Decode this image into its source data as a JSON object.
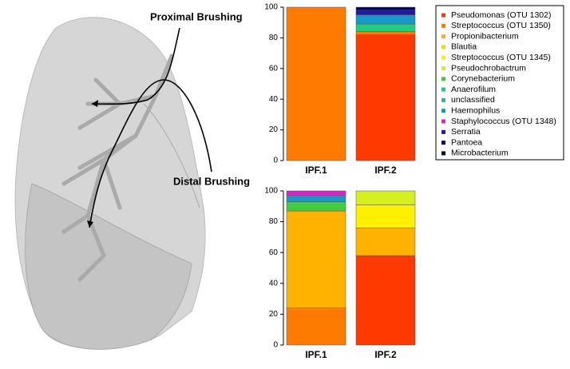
{
  "labels": {
    "proximal": "Proximal Brushing",
    "distal": "Distal Brushing"
  },
  "chart_data": [
    {
      "type": "stacked-bar",
      "categories": [
        "IPF.1",
        "IPF.2"
      ],
      "ylim": [
        0,
        100
      ],
      "yticks": [
        0,
        20,
        40,
        60,
        80,
        100
      ],
      "series": [
        {
          "name": "Pseudomonas (OTU 1302)",
          "color": "#ff3a00",
          "values": [
            0,
            82
          ]
        },
        {
          "name": "Streptococcus (OTU 1350)",
          "color": "#ff7a00",
          "values": [
            100,
            2
          ]
        },
        {
          "name": "Propionibacterium",
          "color": "#ffb300",
          "values": [
            0,
            0
          ]
        },
        {
          "name": "Blautia",
          "color": "#ffd400",
          "values": [
            0,
            0
          ]
        },
        {
          "name": "Streptococcus (OTU 1345)",
          "color": "#fff000",
          "values": [
            0,
            0
          ]
        },
        {
          "name": "Pseudochrobactrum",
          "color": "#d4f020",
          "values": [
            0,
            0
          ]
        },
        {
          "name": "Corynebacterium",
          "color": "#40cc40",
          "values": [
            0,
            0
          ]
        },
        {
          "name": "Anaerofilum",
          "color": "#20cc80",
          "values": [
            0,
            5
          ]
        },
        {
          "name": "unclassified",
          "color": "#20b8a8",
          "values": [
            0,
            0
          ]
        },
        {
          "name": "Haemophilus",
          "color": "#1898c8",
          "values": [
            0,
            6
          ]
        },
        {
          "name": "Staphylococcus (OTU 1348)",
          "color": "#e020d0",
          "values": [
            0,
            0
          ]
        },
        {
          "name": "Serratia",
          "color": "#1a1aa8",
          "values": [
            0,
            3
          ]
        },
        {
          "name": "Pantoea",
          "color": "#000070",
          "values": [
            0,
            2
          ]
        },
        {
          "name": "Microbacterium",
          "color": "#001030",
          "values": [
            0,
            0
          ]
        }
      ]
    },
    {
      "type": "stacked-bar",
      "categories": [
        "IPF.1",
        "IPF.2"
      ],
      "ylim": [
        0,
        100
      ],
      "yticks": [
        0,
        20,
        40,
        60,
        80,
        100
      ],
      "series": [
        {
          "values": [
            0,
            58
          ]
        },
        {
          "values": [
            24,
            0
          ]
        },
        {
          "values": [
            63,
            18
          ]
        },
        {
          "values": [
            0,
            0
          ]
        },
        {
          "values": [
            0,
            15
          ]
        },
        {
          "values": [
            0,
            9
          ]
        },
        {
          "values": [
            6,
            0
          ]
        },
        {
          "values": [
            0,
            0
          ]
        },
        {
          "values": [
            0,
            0
          ]
        },
        {
          "values": [
            4,
            0
          ]
        },
        {
          "values": [
            3,
            0
          ]
        },
        {
          "values": [
            0,
            0
          ]
        },
        {
          "values": [
            0,
            0
          ]
        },
        {
          "values": [
            0,
            0
          ]
        }
      ]
    }
  ]
}
